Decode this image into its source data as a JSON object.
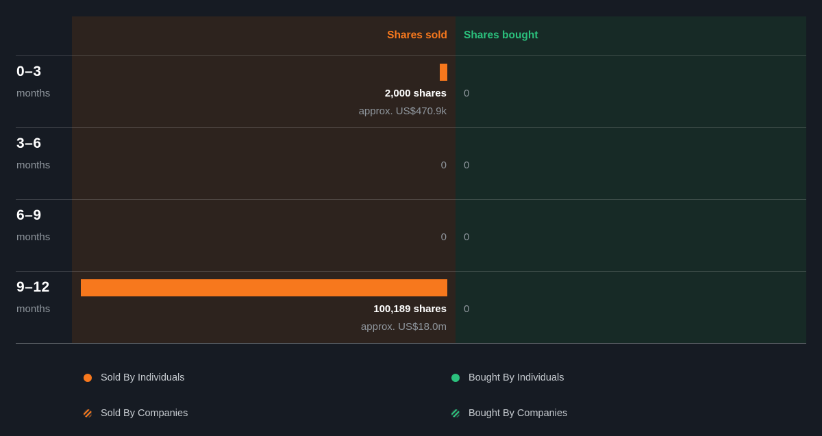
{
  "header": {
    "sold_label": "Shares sold",
    "bought_label": "Shares bought"
  },
  "rows": [
    {
      "period": "0–3",
      "unit": "months",
      "sold": {
        "primary": "2,000 shares",
        "secondary": "approx. US$470.9k",
        "shares": 2000
      },
      "bought": {
        "primary": "0",
        "shares": 0
      }
    },
    {
      "period": "3–6",
      "unit": "months",
      "sold": {
        "primary": "0",
        "shares": 0
      },
      "bought": {
        "primary": "0",
        "shares": 0
      }
    },
    {
      "period": "6–9",
      "unit": "months",
      "sold": {
        "primary": "0",
        "shares": 0
      },
      "bought": {
        "primary": "0",
        "shares": 0
      }
    },
    {
      "period": "9–12",
      "unit": "months",
      "sold": {
        "primary": "100,189 shares",
        "secondary": "approx. US$18.0m",
        "shares": 100189
      },
      "bought": {
        "primary": "0",
        "shares": 0
      }
    }
  ],
  "legend": {
    "items": [
      {
        "label": "Sold By Individuals",
        "swatch": "solid-orange",
        "icon": "sold-individuals-dot-icon"
      },
      {
        "label": "Sold By Companies",
        "swatch": "hatched-orange",
        "icon": "sold-companies-hatched-dot-icon"
      },
      {
        "label": "Bought By Individuals",
        "swatch": "solid-green",
        "icon": "bought-individuals-dot-icon"
      },
      {
        "label": "Bought By Companies",
        "swatch": "hatched-green",
        "icon": "bought-companies-hatched-dot-icon"
      }
    ]
  },
  "chart_data": {
    "type": "bar",
    "orientation": "horizontal",
    "title": "Insider transactions: shares sold vs shares bought by period",
    "categories": [
      "0–3 months",
      "3–6 months",
      "6–9 months",
      "9–12 months"
    ],
    "series": [
      {
        "name": "Shares sold",
        "values": [
          2000,
          0,
          0,
          100189
        ],
        "color": "#f7781d"
      },
      {
        "name": "Shares bought",
        "values": [
          0,
          0,
          0,
          0
        ],
        "color": "#2bc17d"
      }
    ],
    "annotations": [
      "approx. US$470.9k",
      "",
      "",
      "approx. US$18.0m"
    ],
    "max_shares": 100189,
    "xlim": [
      0,
      100189
    ],
    "grid": false,
    "legend_position": "bottom"
  },
  "colors": {
    "background": "#161b23",
    "sold-area": "#2d231e",
    "bought-area": "#172a26",
    "orange": "#f7781d",
    "green": "#2bc17d",
    "text-primary": "#ffffff",
    "text-muted": "#8f969d",
    "legend-text": "#c7ccd1"
  }
}
